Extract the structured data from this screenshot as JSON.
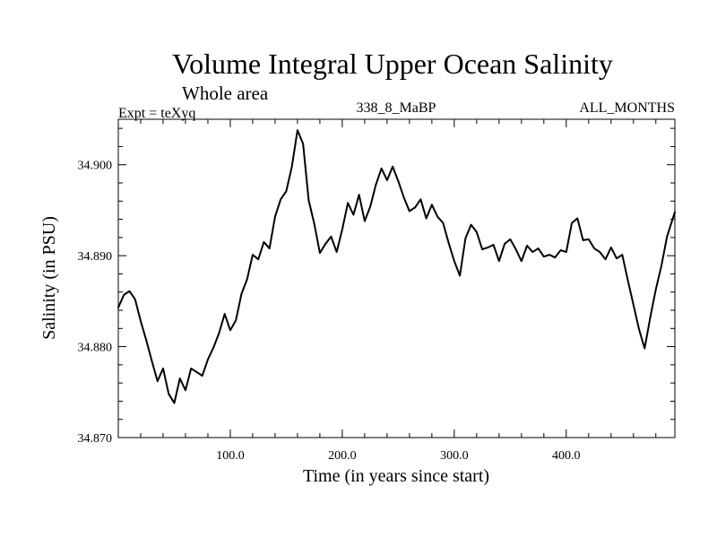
{
  "chart_data": {
    "type": "line",
    "title": "Volume Integral Upper Ocean Salinity",
    "subtitle": "Whole area",
    "left_note": "Expt = teXyq",
    "center_note": "338_8_MaBP",
    "right_note": "ALL_MONTHS",
    "xlabel": "Time (in years since start)",
    "ylabel": "Salinity (in PSU)",
    "xlim": [
      0,
      497
    ],
    "ylim": [
      34.87,
      34.905
    ],
    "x_ticks": [
      100,
      200,
      300,
      400
    ],
    "x_tick_labels": [
      "100.0",
      "200.0",
      "300.0",
      "400.0"
    ],
    "y_ticks": [
      34.87,
      34.88,
      34.89,
      34.9
    ],
    "y_tick_labels": [
      "34.870",
      "34.880",
      "34.890",
      "34.900"
    ],
    "series": [
      {
        "color": "#000000",
        "x": [
          0,
          5,
          10,
          15,
          20,
          25,
          30,
          35,
          40,
          45,
          50,
          55,
          60,
          65,
          70,
          75,
          80,
          85,
          90,
          95,
          100,
          105,
          110,
          115,
          120,
          125,
          130,
          135,
          140,
          145,
          150,
          155,
          160,
          165,
          170,
          175,
          180,
          185,
          190,
          195,
          200,
          205,
          210,
          215,
          220,
          225,
          230,
          235,
          240,
          245,
          250,
          255,
          260,
          265,
          270,
          275,
          280,
          285,
          290,
          295,
          300,
          305,
          310,
          315,
          320,
          325,
          330,
          335,
          340,
          345,
          350,
          355,
          360,
          365,
          370,
          375,
          380,
          385,
          390,
          395,
          400,
          405,
          410,
          415,
          420,
          425,
          430,
          435,
          440,
          445,
          450,
          455,
          460,
          465,
          470,
          475,
          480,
          485,
          490,
          497
        ],
        "y": [
          34.8843,
          34.8857,
          34.8861,
          34.8852,
          34.8828,
          34.8807,
          34.8784,
          34.8762,
          34.8776,
          34.8748,
          34.8738,
          34.8765,
          34.8752,
          34.8776,
          34.8772,
          34.8768,
          34.8786,
          34.8799,
          34.8815,
          34.8836,
          34.8818,
          34.8829,
          34.8858,
          34.8874,
          34.8901,
          34.8896,
          34.8915,
          34.8908,
          34.8943,
          34.8962,
          34.8971,
          34.8998,
          34.9038,
          34.9023,
          34.8961,
          34.8935,
          34.8903,
          34.8913,
          34.8921,
          34.8904,
          34.8929,
          34.8958,
          34.8945,
          34.8967,
          34.8938,
          34.8954,
          34.8978,
          34.8996,
          34.8983,
          34.8998,
          34.8982,
          34.8964,
          34.8949,
          34.8953,
          34.8962,
          34.8941,
          34.8956,
          34.8943,
          34.8936,
          34.8914,
          34.8894,
          34.8878,
          34.8919,
          34.8934,
          34.8926,
          34.8907,
          34.8909,
          34.8912,
          34.8894,
          34.8913,
          34.8918,
          34.8907,
          34.8894,
          34.8911,
          34.8904,
          34.8908,
          34.8899,
          34.8901,
          34.8898,
          34.8906,
          34.8904,
          34.8936,
          34.8941,
          34.8917,
          34.8918,
          34.8908,
          34.8904,
          34.8896,
          34.8909,
          34.8897,
          34.8901,
          34.8873,
          34.8846,
          34.8819,
          34.8798,
          34.8832,
          34.8863,
          34.8889,
          34.8921,
          34.8948
        ]
      }
    ]
  }
}
